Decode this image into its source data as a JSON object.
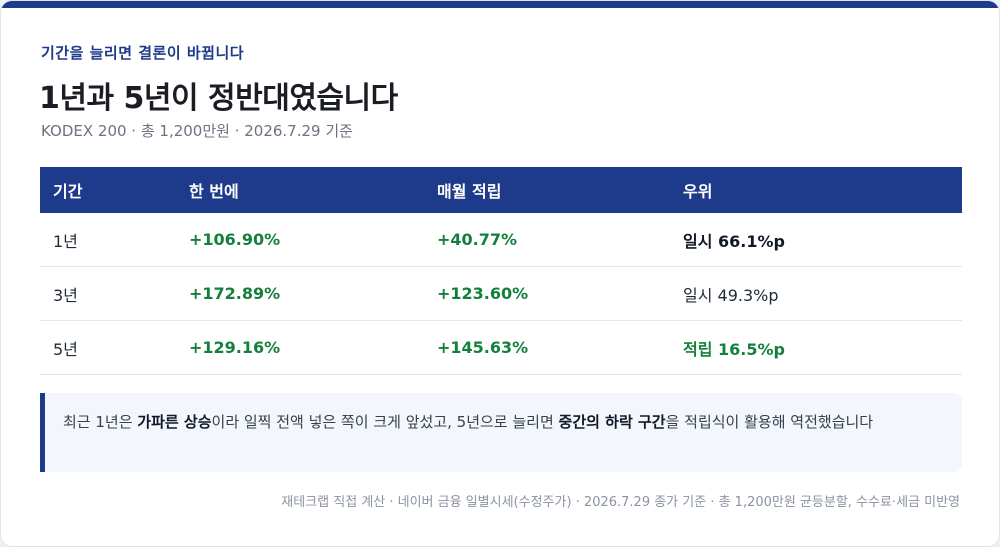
{
  "header": {
    "eyebrow": "기간을 늘리면 결론이 바뀝니다",
    "title": "1년과 5년이 정반대였습니다",
    "meta": "KODEX 200 · 총 1,200만원 · 2026.7.29 기준"
  },
  "table": {
    "columns": [
      "기간",
      "한 번에",
      "매월 적립",
      "우위"
    ],
    "rows": [
      {
        "period": "1년",
        "lump": "+106.90%",
        "monthly": "+40.77%",
        "winner": "일시 66.1%p"
      },
      {
        "period": "3년",
        "lump": "+172.89%",
        "monthly": "+123.60%",
        "winner": "일시 49.3%p"
      },
      {
        "period": "5년",
        "lump": "+129.16%",
        "monthly": "+145.63%",
        "winner": "적립 16.5%p"
      }
    ]
  },
  "note": {
    "p1": "최근 1년은 ",
    "b1": "가파른 상승",
    "p2": "이라 일찍 전액 넣은 쪽이 크게 앞섰고, 5년으로 늘리면 ",
    "b2": "중간의 하락 구간",
    "p3": "을 적립식이 활용해 역전했습니다"
  },
  "footer": "재테크랩 직접 계산 · 네이버 금융 일별시세(수정주가) · 2026.7.29 종가 기준 · 총 1,200만원 균등분할, 수수료·세금 미반영",
  "colors": {
    "accent": "#1e3a8a",
    "positive": "#15803d",
    "text": "#1a1d24",
    "muted": "#6b7280"
  }
}
